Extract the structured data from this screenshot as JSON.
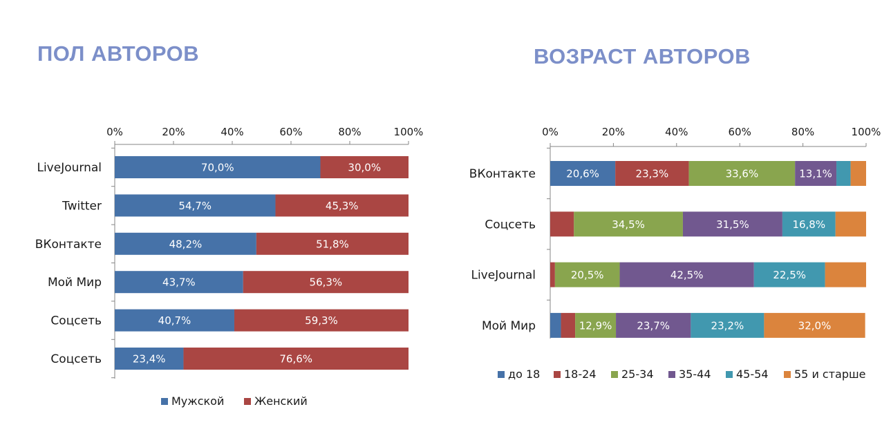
{
  "titles": {
    "left": "ПОЛ АВТОРОВ",
    "right": "ВОЗРАСТ АВТОРОВ"
  },
  "chart_data": [
    {
      "type": "bar",
      "orientation": "horizontal",
      "stacked": "percent",
      "title": "ПОЛ АВТОРОВ",
      "categories": [
        "LiveJournal",
        "Twitter",
        "ВКонтакте",
        "Мой Мир",
        "Соцсеть",
        "Соцсеть"
      ],
      "series": [
        {
          "name": "Мужской",
          "color": "#4672a8",
          "values": [
            70.0,
            54.7,
            48.2,
            43.7,
            40.7,
            23.4
          ],
          "labels": [
            "70,0%",
            "54,7%",
            "48,2%",
            "43,7%",
            "40,7%",
            "23,4%"
          ]
        },
        {
          "name": "Женский",
          "color": "#aa4643",
          "values": [
            30.0,
            45.3,
            51.8,
            56.3,
            59.3,
            76.6
          ],
          "labels": [
            "30,0%",
            "45,3%",
            "51,8%",
            "56,3%",
            "59,3%",
            "76,6%"
          ]
        }
      ],
      "x_ticks": [
        "0%",
        "20%",
        "40%",
        "60%",
        "80%",
        "100%"
      ],
      "xlim": [
        0,
        100
      ],
      "axis_position": "top",
      "legend_position": "bottom"
    },
    {
      "type": "bar",
      "orientation": "horizontal",
      "stacked": "percent",
      "title": "ВОЗРАСТ АВТОРОВ",
      "categories": [
        "ВКонтакте",
        "Соцсеть",
        "LiveJournal",
        "Мой Мир"
      ],
      "series": [
        {
          "name": "до 18",
          "color": "#4672a8",
          "values": [
            20.6,
            0.0,
            0.0,
            3.4
          ],
          "labels": [
            "20,6%",
            "",
            "",
            ""
          ]
        },
        {
          "name": "18-24",
          "color": "#aa4643",
          "values": [
            23.3,
            7.5,
            1.5,
            4.5
          ],
          "labels": [
            "23,3%",
            "",
            "",
            ""
          ]
        },
        {
          "name": "25-34",
          "color": "#89a54e",
          "values": [
            33.6,
            34.5,
            20.5,
            12.9
          ],
          "labels": [
            "33,6%",
            "34,5%",
            "20,5%",
            "12,9%"
          ]
        },
        {
          "name": "35-44",
          "color": "#71588f",
          "values": [
            13.1,
            31.5,
            42.5,
            23.7
          ],
          "labels": [
            "13,1%",
            "31,5%",
            "42,5%",
            "23,7%"
          ]
        },
        {
          "name": "45-54",
          "color": "#4198af",
          "values": [
            4.5,
            16.8,
            22.5,
            23.2
          ],
          "labels": [
            "",
            "16,8%",
            "22,5%",
            "23,2%"
          ]
        },
        {
          "name": "55 и старше",
          "color": "#db843d",
          "values": [
            4.9,
            9.7,
            13.0,
            32.0
          ],
          "labels": [
            "",
            "",
            "",
            "32,0%"
          ]
        }
      ],
      "x_ticks": [
        "0%",
        "20%",
        "40%",
        "60%",
        "80%",
        "100%"
      ],
      "xlim": [
        0,
        100
      ],
      "axis_position": "top",
      "legend_position": "bottom"
    }
  ]
}
